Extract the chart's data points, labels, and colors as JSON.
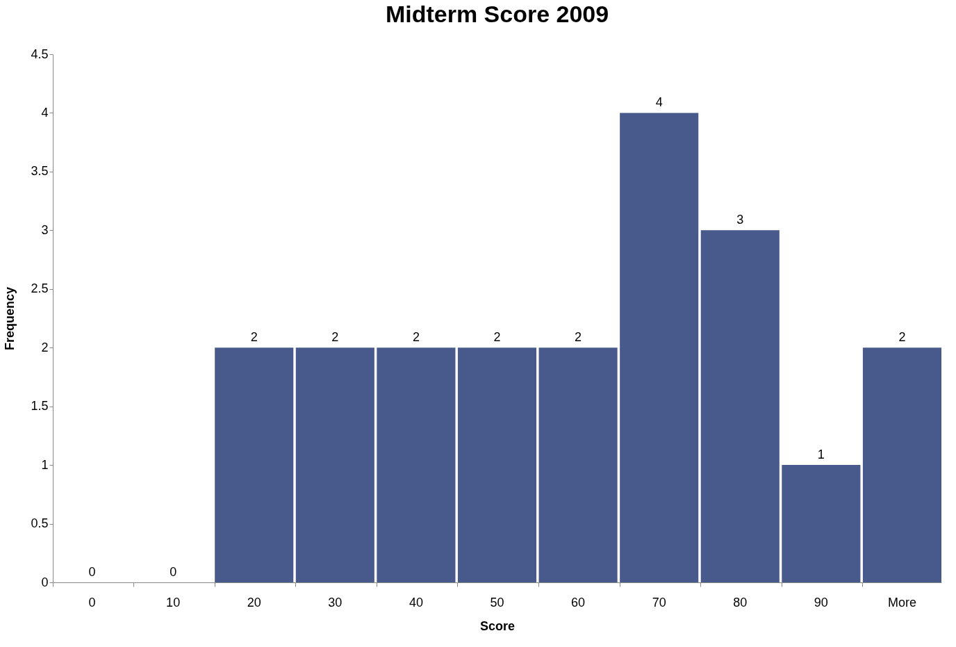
{
  "chart_data": {
    "type": "bar",
    "title": "Midterm Score 2009",
    "xlabel": "Score",
    "ylabel": "Frequency",
    "categories": [
      "0",
      "10",
      "20",
      "30",
      "40",
      "50",
      "60",
      "70",
      "80",
      "90",
      "More"
    ],
    "values": [
      0,
      0,
      2,
      2,
      2,
      2,
      2,
      4,
      3,
      1,
      2
    ],
    "color": "#485a8c",
    "ylim": [
      0,
      4.5
    ],
    "yticks": [
      0,
      0.5,
      1,
      1.5,
      2,
      2.5,
      3,
      3.5,
      4,
      4.5
    ],
    "data_labels": true,
    "grid": false
  }
}
